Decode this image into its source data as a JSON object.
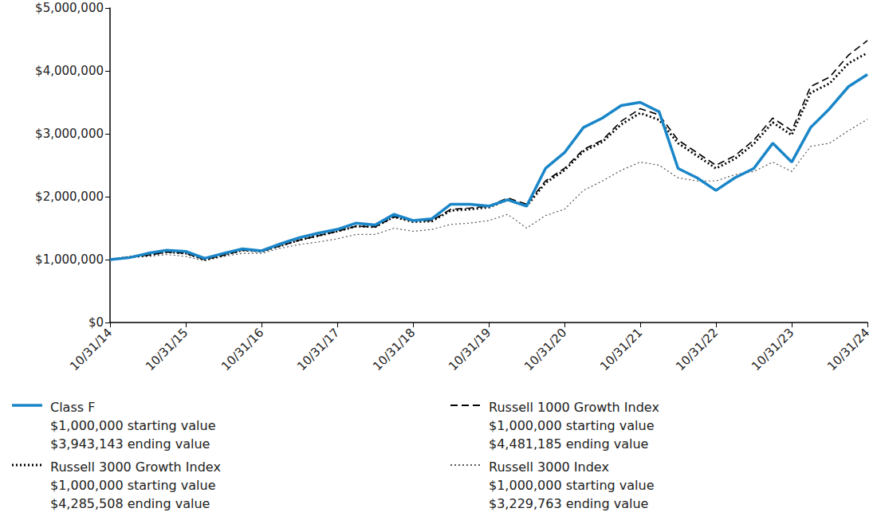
{
  "chart_data": {
    "type": "line",
    "categories": [
      "10/31/14",
      null,
      null,
      null,
      "10/31/15",
      null,
      null,
      null,
      "10/31/16",
      null,
      null,
      null,
      "10/31/17",
      null,
      null,
      null,
      "10/31/18",
      null,
      null,
      null,
      "10/31/19",
      null,
      null,
      null,
      "10/31/20",
      null,
      null,
      null,
      "10/31/21",
      null,
      null,
      null,
      "10/31/22",
      null,
      null,
      null,
      "10/31/23",
      null,
      null,
      null,
      "10/31/24"
    ],
    "series": [
      {
        "name": "Class F",
        "color": "#1a86c8",
        "line_style": "solid",
        "legend_text": [
          "$1,000,000 starting value",
          "$3,943,143 ending value"
        ],
        "values": [
          1000000,
          1030000,
          1100000,
          1150000,
          1130000,
          1020000,
          1100000,
          1170000,
          1140000,
          1250000,
          1350000,
          1420000,
          1480000,
          1580000,
          1550000,
          1720000,
          1620000,
          1650000,
          1880000,
          1880000,
          1850000,
          1950000,
          1850000,
          2450000,
          2700000,
          3100000,
          3250000,
          3450000,
          3500000,
          3350000,
          2450000,
          2300000,
          2100000,
          2300000,
          2450000,
          2850000,
          2550000,
          3100000,
          3400000,
          3750000,
          3943143
        ]
      },
      {
        "name": "Russell 1000 Growth Index",
        "color": "#000000",
        "line_style": "dashed",
        "legend_text": [
          "$1,000,000 starting value",
          "$4,481,185 ending value"
        ],
        "values": [
          1000000,
          1040000,
          1070000,
          1120000,
          1100000,
          1000000,
          1070000,
          1150000,
          1130000,
          1220000,
          1310000,
          1380000,
          1450000,
          1530000,
          1520000,
          1680000,
          1620000,
          1620000,
          1800000,
          1820000,
          1850000,
          1980000,
          1880000,
          2250000,
          2450000,
          2750000,
          2900000,
          3200000,
          3400000,
          3300000,
          2900000,
          2700000,
          2500000,
          2650000,
          2900000,
          3250000,
          3050000,
          3750000,
          3900000,
          4250000,
          4481185
        ]
      },
      {
        "name": "Russell 3000 Growth Index",
        "color": "#000000",
        "line_style": "dotted",
        "legend_text": [
          "$1,000,000 starting value",
          "$4,285,508 ending value"
        ],
        "values": [
          1000000,
          1040000,
          1070000,
          1120000,
          1100000,
          1000000,
          1070000,
          1150000,
          1130000,
          1220000,
          1310000,
          1380000,
          1450000,
          1530000,
          1520000,
          1680000,
          1600000,
          1610000,
          1780000,
          1800000,
          1830000,
          1950000,
          1850000,
          2220000,
          2420000,
          2720000,
          2870000,
          3150000,
          3330000,
          3220000,
          2850000,
          2650000,
          2450000,
          2600000,
          2840000,
          3180000,
          2980000,
          3650000,
          3800000,
          4120000,
          4285508
        ]
      },
      {
        "name": "Russell 3000 Index",
        "color": "#555555",
        "line_style": "dotted",
        "legend_text": [
          "$1,000,000 starting value",
          "$3,229,763 ending value"
        ],
        "values": [
          1000000,
          1030000,
          1050000,
          1080000,
          1050000,
          980000,
          1050000,
          1100000,
          1100000,
          1180000,
          1240000,
          1280000,
          1330000,
          1400000,
          1400000,
          1500000,
          1450000,
          1480000,
          1560000,
          1580000,
          1620000,
          1720000,
          1500000,
          1700000,
          1800000,
          2100000,
          2250000,
          2420000,
          2550000,
          2500000,
          2300000,
          2250000,
          2250000,
          2350000,
          2400000,
          2550000,
          2400000,
          2800000,
          2850000,
          3050000,
          3229763
        ]
      }
    ],
    "ylim": [
      0,
      5000000
    ],
    "yticks": [
      {
        "value": 0,
        "label": "$0"
      },
      {
        "value": 1000000,
        "label": "$1,000,000"
      },
      {
        "value": 2000000,
        "label": "$2,000,000"
      },
      {
        "value": 3000000,
        "label": "$3,000,000"
      },
      {
        "value": 4000000,
        "label": "$4,000,000"
      },
      {
        "value": 5000000,
        "label": "$5,000,000"
      }
    ],
    "grid": false,
    "legend": "bottom"
  }
}
